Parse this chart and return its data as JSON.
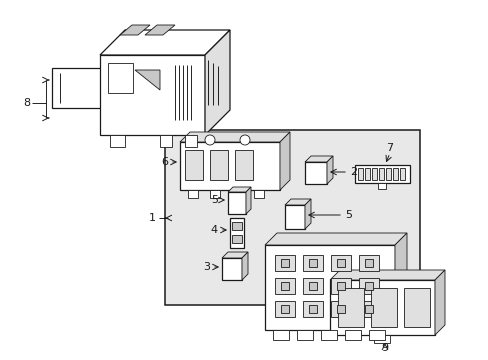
{
  "bg_color": "#ffffff",
  "line_color": "#1a1a1a",
  "gray_light": "#e0e0e0",
  "gray_mid": "#c8c8c8",
  "gray_dark": "#aaaaaa",
  "dot_fill": "#e8e8e8",
  "fig_w": 4.89,
  "fig_h": 3.6,
  "dpi": 100
}
